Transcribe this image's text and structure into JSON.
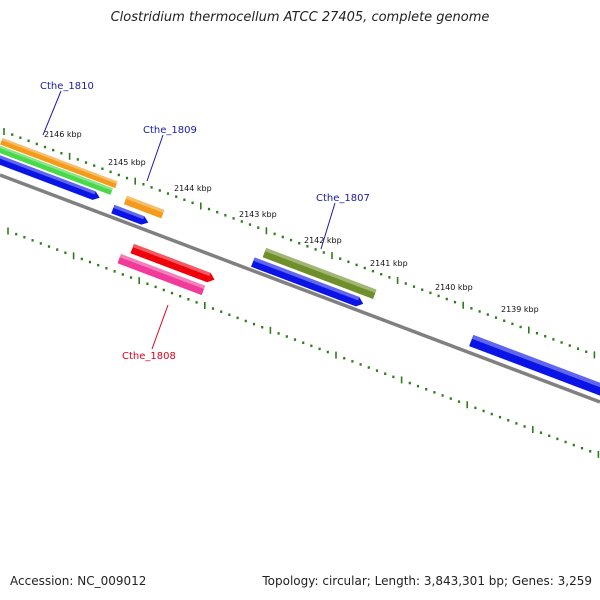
{
  "title": "Clostridium thermocellum ATCC 27405, complete genome",
  "footer": {
    "accession": "Accession: NC_009012",
    "topology": "Topology: circular; Length: 3,843,301 bp; Genes: 3,259"
  },
  "colors": {
    "backbone": "#808080",
    "tick": "#2e7d1a",
    "label_blue": "#1a1aa6",
    "label_red": "#e0001a",
    "gene_blue": "#0a14e6",
    "gene_orange": "#f59a1a",
    "gene_green": "#49d949",
    "gene_olive": "#6f8f2a",
    "gene_red": "#f0000a",
    "gene_pink": "#f23a9a"
  },
  "kbp_labels": [
    "2146 kbp",
    "2145 kbp",
    "2144 kbp",
    "2143 kbp",
    "2142 kbp",
    "2141 kbp",
    "2140 kbp",
    "2139 kbp"
  ],
  "gene_labels": [
    {
      "text": "Cthe_1810",
      "color": "label_blue"
    },
    {
      "text": "Cthe_1809",
      "color": "label_blue"
    },
    {
      "text": "Cthe_1807",
      "color": "label_blue"
    },
    {
      "text": "Cthe_1808",
      "color": "label_red"
    }
  ]
}
